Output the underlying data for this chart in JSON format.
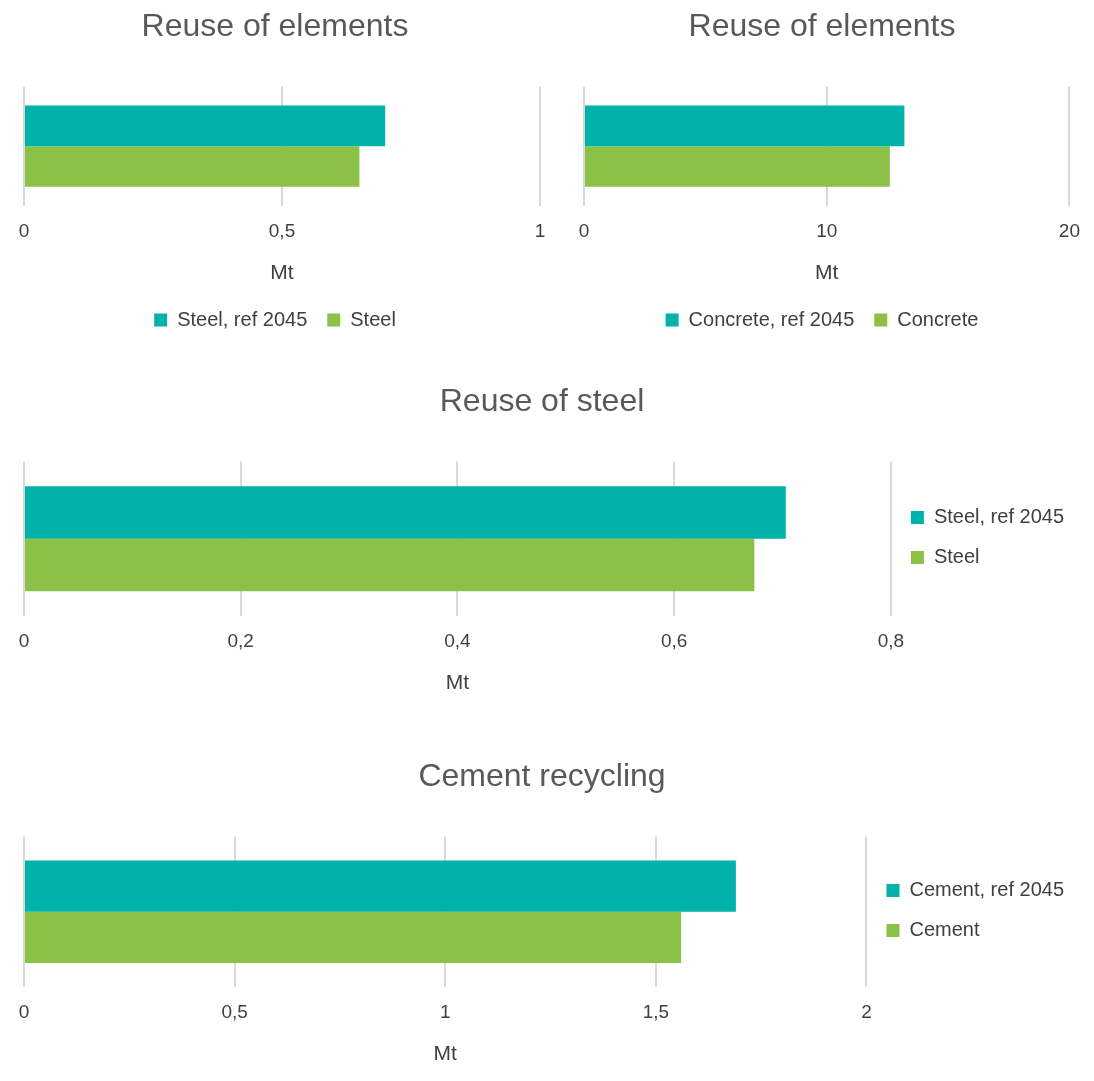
{
  "chart_data": [
    {
      "type": "bar",
      "orientation": "horizontal",
      "title": "Reuse of elements",
      "xlabel": "Mt",
      "categories": [
        null
      ],
      "series": [
        {
          "name": "Steel, ref 2045",
          "color": "#00b2a9",
          "values": [
            0.7
          ]
        },
        {
          "name": "Steel",
          "color": "#8bc147",
          "values": [
            0.65
          ]
        }
      ],
      "xlim": [
        0,
        1
      ],
      "xticks": [
        0,
        {
          "value": 0.5,
          "label": "0,5"
        },
        1
      ],
      "grid": "x",
      "legend": "bottom"
    },
    {
      "type": "bar",
      "orientation": "horizontal",
      "title": "Reuse of elements",
      "xlabel": "Mt",
      "categories": [
        null
      ],
      "series": [
        {
          "name": "Concrete, ref 2045",
          "color": "#00b2a9",
          "values": [
            13.2
          ]
        },
        {
          "name": "Concrete",
          "color": "#8bc147",
          "values": [
            12.6
          ]
        }
      ],
      "xlim": [
        0,
        20
      ],
      "xticks": [
        0,
        10,
        20
      ],
      "grid": "x",
      "legend": "bottom"
    },
    {
      "type": "bar",
      "orientation": "horizontal",
      "title": "Reuse of steel",
      "xlabel": "Mt",
      "categories": [
        null
      ],
      "series": [
        {
          "name": "Steel, ref 2045",
          "color": "#00b2a9",
          "values": [
            0.703
          ]
        },
        {
          "name": "Steel",
          "color": "#8bc147",
          "values": [
            0.674
          ]
        }
      ],
      "xlim": [
        0,
        0.8
      ],
      "xticks": [
        0,
        {
          "value": 0.2,
          "label": "0,2"
        },
        {
          "value": 0.4,
          "label": "0,4"
        },
        {
          "value": 0.6,
          "label": "0,6"
        },
        {
          "value": 0.8,
          "label": "0,8"
        }
      ],
      "grid": "x",
      "legend": "right"
    },
    {
      "type": "bar",
      "orientation": "horizontal",
      "title": "Cement recycling",
      "xlabel": "Mt",
      "categories": [
        null
      ],
      "series": [
        {
          "name": "Cement, ref 2045",
          "color": "#00b2a9",
          "values": [
            1.69
          ]
        },
        {
          "name": "Cement",
          "color": "#8bc147",
          "values": [
            1.56
          ]
        }
      ],
      "xlim": [
        0,
        2
      ],
      "xticks": [
        0,
        {
          "value": 0.5,
          "label": "0,5"
        },
        1,
        {
          "value": 1.5,
          "label": "1,5"
        },
        2
      ],
      "grid": "x",
      "legend": "right"
    }
  ]
}
